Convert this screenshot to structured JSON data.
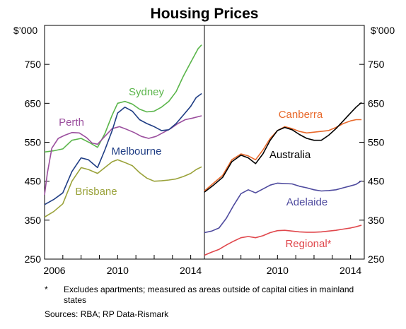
{
  "chart_data": [
    {
      "type": "line",
      "panel": "capital cities",
      "title": "Housing Prices",
      "ylabel": "$’000",
      "ylim": [
        250,
        850
      ],
      "yticks": [
        250,
        350,
        450,
        550,
        650,
        750
      ],
      "xlim": [
        2006,
        2014.75
      ],
      "xticks": [
        2006,
        2010,
        2014
      ],
      "series": [
        {
          "name": "Sydney",
          "color": "#5ab54a",
          "x": [
            2006.0,
            2006.5,
            2007.0,
            2007.5,
            2008.0,
            2008.5,
            2008.9,
            2009.3,
            2009.7,
            2010.0,
            2010.4,
            2010.8,
            2011.2,
            2011.6,
            2012.0,
            2012.4,
            2012.8,
            2013.2,
            2013.6,
            2014.0,
            2014.4,
            2014.6
          ],
          "y": [
            525,
            528,
            533,
            555,
            560,
            548,
            537,
            572,
            620,
            650,
            655,
            648,
            635,
            628,
            630,
            640,
            655,
            680,
            720,
            755,
            790,
            800
          ]
        },
        {
          "name": "Perth",
          "color": "#9b4f9e",
          "x": [
            2006.0,
            2006.15,
            2006.4,
            2006.75,
            2007.1,
            2007.5,
            2007.9,
            2008.3,
            2008.6,
            2008.9,
            2009.3,
            2009.7,
            2010.1,
            2010.5,
            2010.9,
            2011.3,
            2011.7,
            2012.1,
            2012.5,
            2012.9,
            2013.3,
            2013.7,
            2014.1,
            2014.6
          ],
          "y": [
            415,
            470,
            535,
            560,
            568,
            575,
            574,
            562,
            548,
            545,
            565,
            585,
            590,
            583,
            575,
            565,
            560,
            565,
            575,
            585,
            598,
            608,
            612,
            618
          ]
        },
        {
          "name": "Melbourne",
          "color": "#1f3d84",
          "x": [
            2006.0,
            2006.5,
            2007.0,
            2007.5,
            2008.0,
            2008.4,
            2008.9,
            2009.3,
            2009.7,
            2010.0,
            2010.4,
            2010.8,
            2011.2,
            2011.6,
            2012.0,
            2012.4,
            2012.8,
            2013.2,
            2013.6,
            2014.0,
            2014.3,
            2014.6
          ],
          "y": [
            390,
            403,
            420,
            475,
            510,
            505,
            485,
            530,
            580,
            625,
            640,
            630,
            608,
            598,
            590,
            580,
            582,
            598,
            620,
            642,
            665,
            675
          ]
        },
        {
          "name": "Brisbane",
          "color": "#9aa23a",
          "x": [
            2006.0,
            2006.5,
            2007.0,
            2007.5,
            2008.0,
            2008.4,
            2008.9,
            2009.3,
            2009.7,
            2010.0,
            2010.4,
            2010.8,
            2011.2,
            2011.6,
            2012.0,
            2012.4,
            2012.8,
            2013.2,
            2013.6,
            2014.0,
            2014.3,
            2014.6
          ],
          "y": [
            358,
            372,
            392,
            450,
            485,
            480,
            470,
            485,
            500,
            505,
            498,
            490,
            472,
            458,
            450,
            451,
            453,
            456,
            462,
            470,
            480,
            487
          ]
        }
      ]
    },
    {
      "type": "line",
      "panel": "aggregates",
      "ylabel": "$’000",
      "ylim": [
        250,
        850
      ],
      "yticks": [
        250,
        350,
        450,
        550,
        650,
        750
      ],
      "xlim": [
        2006,
        2014.75
      ],
      "xticks": [
        2010,
        2014
      ],
      "series": [
        {
          "name": "Canberra",
          "color": "#e8692b",
          "x": [
            2006.0,
            2006.5,
            2007.0,
            2007.5,
            2008.0,
            2008.4,
            2008.8,
            2009.2,
            2009.6,
            2010.0,
            2010.4,
            2010.8,
            2011.2,
            2011.6,
            2012.0,
            2012.4,
            2012.8,
            2013.2,
            2013.6,
            2014.0,
            2014.3,
            2014.6
          ],
          "y": [
            425,
            445,
            465,
            505,
            520,
            515,
            505,
            530,
            560,
            580,
            590,
            585,
            578,
            574,
            576,
            578,
            580,
            588,
            598,
            605,
            608,
            608
          ]
        },
        {
          "name": "Australia",
          "color": "#000000",
          "x": [
            2006.0,
            2006.5,
            2007.0,
            2007.5,
            2008.0,
            2008.4,
            2008.8,
            2009.2,
            2009.6,
            2010.0,
            2010.4,
            2010.8,
            2011.2,
            2011.6,
            2012.0,
            2012.4,
            2012.8,
            2013.2,
            2013.6,
            2014.0,
            2014.3,
            2014.6
          ],
          "y": [
            422,
            440,
            460,
            500,
            517,
            510,
            495,
            520,
            555,
            580,
            588,
            582,
            570,
            560,
            555,
            555,
            568,
            585,
            605,
            625,
            640,
            652
          ]
        },
        {
          "name": "Adelaide",
          "color": "#4e4a9e",
          "x": [
            2006.0,
            2006.4,
            2006.8,
            2007.2,
            2007.6,
            2008.0,
            2008.4,
            2008.8,
            2009.2,
            2009.6,
            2010.0,
            2010.4,
            2010.8,
            2011.2,
            2011.6,
            2012.0,
            2012.4,
            2012.8,
            2013.2,
            2013.6,
            2014.0,
            2014.3,
            2014.6
          ],
          "y": [
            318,
            322,
            330,
            355,
            388,
            418,
            428,
            420,
            430,
            440,
            445,
            444,
            443,
            437,
            433,
            428,
            425,
            426,
            428,
            433,
            438,
            442,
            451
          ]
        },
        {
          "name": "Regional*",
          "color": "#e0474c",
          "x": [
            2006.0,
            2006.4,
            2006.8,
            2007.2,
            2007.6,
            2008.0,
            2008.4,
            2008.8,
            2009.2,
            2009.6,
            2010.0,
            2010.4,
            2010.8,
            2011.2,
            2011.6,
            2012.0,
            2012.4,
            2012.8,
            2013.2,
            2013.6,
            2014.0,
            2014.3,
            2014.6
          ],
          "y": [
            260,
            268,
            275,
            286,
            296,
            305,
            308,
            305,
            310,
            318,
            323,
            324,
            322,
            320,
            319,
            319,
            320,
            322,
            324,
            327,
            330,
            333,
            337
          ]
        }
      ]
    }
  ],
  "footnote_marker": "*",
  "footnote_text": "Excludes apartments; measured as areas outside of capital cities in mainland states",
  "sources": "Sources:  RBA; RP Data-Rismark"
}
